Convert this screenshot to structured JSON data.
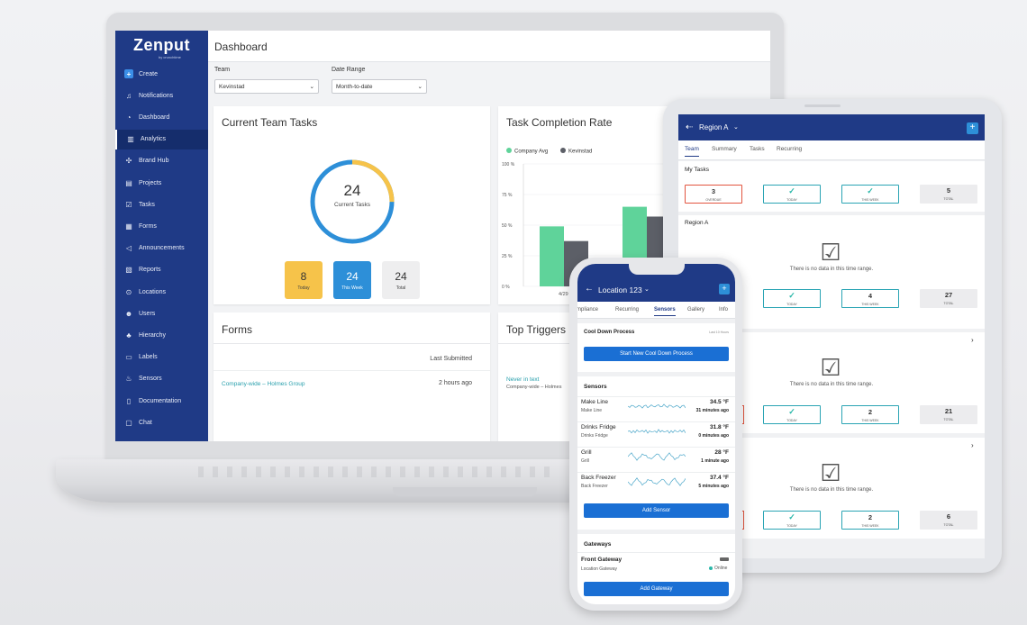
{
  "laptop": {
    "brand": "Zenput",
    "brand_sub": "by crunchtime",
    "nav": [
      {
        "label": "Create",
        "icon": "plus-icon"
      },
      {
        "label": "Notifications",
        "icon": "bell-icon"
      },
      {
        "label": "Dashboard",
        "icon": "gauge-icon"
      },
      {
        "label": "Analytics",
        "icon": "chart-icon"
      },
      {
        "label": "Brand Hub",
        "icon": "hub-icon"
      },
      {
        "label": "Projects",
        "icon": "clipboard-icon"
      },
      {
        "label": "Tasks",
        "icon": "checkbox-icon"
      },
      {
        "label": "Forms",
        "icon": "document-icon"
      },
      {
        "label": "Announcements",
        "icon": "megaphone-icon"
      },
      {
        "label": "Reports",
        "icon": "bar-chart-icon"
      },
      {
        "label": "Locations",
        "icon": "pin-icon"
      },
      {
        "label": "Users",
        "icon": "users-icon"
      },
      {
        "label": "Hierarchy",
        "icon": "hierarchy-icon"
      },
      {
        "label": "Labels",
        "icon": "label-icon"
      },
      {
        "label": "Sensors",
        "icon": "sensor-icon"
      },
      {
        "label": "Documentation",
        "icon": "book-icon"
      },
      {
        "label": "Chat",
        "icon": "chat-icon"
      }
    ],
    "active_nav": "Analytics",
    "page_title": "Dashboard",
    "team_label": "Team",
    "team_value": "Kevinstad",
    "range_label": "Date Range",
    "range_value": "Month-to-date",
    "tasks_card": {
      "title": "Current Team Tasks",
      "total": "24",
      "total_label": "Current Tasks",
      "progress_fraction": 0.25,
      "tiles": [
        {
          "value": "8",
          "label": "Today",
          "color": "#f6c34a"
        },
        {
          "value": "24",
          "label": "This Week",
          "color": "#2d8fd8"
        },
        {
          "value": "24",
          "label": "Total",
          "color": "#eeeeef"
        }
      ]
    },
    "completion_card": {
      "title": "Task Completion Rate"
    },
    "forms_card": {
      "title": "Forms",
      "col_header": "Last Submitted",
      "row_name": "Company-wide – Holmes Group",
      "row_time": "2 hours ago"
    },
    "triggers_card": {
      "title": "Top Triggers",
      "row_name": "Never in text",
      "row_sub": "Company-wide – Holmes"
    }
  },
  "chart_data": {
    "type": "bar",
    "series": [
      {
        "name": "Company Avg",
        "color": "#5fd39a",
        "values": [
          49,
          65
        ]
      },
      {
        "name": "Kevinstad",
        "color": "#5c5f67",
        "values": [
          37,
          57
        ]
      }
    ],
    "categories": [
      "4/29",
      ""
    ],
    "y_ticks": [
      "100 %",
      "75 %",
      "50 %",
      "25 %",
      "0 %"
    ],
    "ylim": [
      0,
      100
    ]
  },
  "tablet": {
    "title": "Region A",
    "tabs": [
      "Team",
      "Summary",
      "Tasks",
      "Recurring"
    ],
    "active_tab": "Team",
    "my_tasks_title": "My Tasks",
    "my_tasks": [
      {
        "value": "3",
        "label": "OVERDUE"
      },
      {
        "value": "✓",
        "label": "TODAY"
      },
      {
        "value": "✓",
        "label": "THIS WEEK"
      },
      {
        "value": "5",
        "label": "TOTAL"
      }
    ],
    "region_title": "Region A",
    "empty_text": "There is no data in this time range.",
    "groups": [
      {
        "today": "✓",
        "week": "4",
        "total": "27"
      },
      {
        "today": "✓",
        "week": "2",
        "total": "21"
      },
      {
        "today": "✓",
        "week": "2",
        "total": "6"
      }
    ],
    "labels": {
      "today": "TODAY",
      "week": "THIS WEEK",
      "total": "TOTAL"
    }
  },
  "phone": {
    "title": "Location 123",
    "tabs": [
      "mpliance",
      "Recurring",
      "Sensors",
      "Gallery",
      "Info"
    ],
    "active_tab": "Sensors",
    "cooldown_title": "Cool Down Process",
    "cooldown_time": "Last 10 Hours",
    "cooldown_button": "Start New Cool Down Process",
    "sensors_title": "Sensors",
    "sensors": [
      {
        "name": "Make Line",
        "sub": "Make Line",
        "value": "34.5 °F",
        "time": "31 minutes ago"
      },
      {
        "name": "Drinks Fridge",
        "sub": "Drinks Fridge",
        "value": "31.8 °F",
        "time": "0 minutes ago"
      },
      {
        "name": "Grill",
        "sub": "Grill",
        "value": "28 °F",
        "time": "1 minute ago"
      },
      {
        "name": "Back Freezer",
        "sub": "Back Freezer",
        "value": "37.4 °F",
        "time": "5 minutes ago"
      }
    ],
    "add_sensor": "Add Sensor",
    "gateways_title": "Gateways",
    "gateway_name": "Front Gateway",
    "gateway_sub": "Location Gateway",
    "gateway_status": "Online",
    "add_gateway": "Add Gateway"
  }
}
